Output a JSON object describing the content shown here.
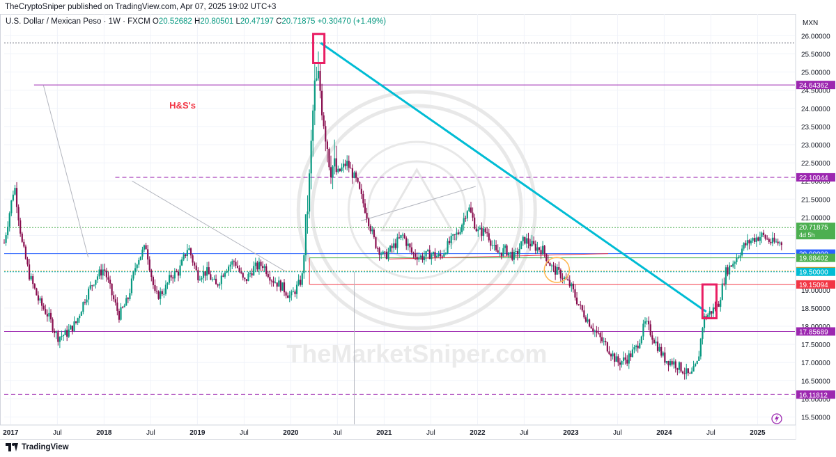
{
  "publisher_line": "TheCryptoSniper published on TradingView.com, Apr 07, 2025 19:02 UTC+3",
  "symbol": {
    "name": "U.S. Dollar / Mexican Peso · 1W · FXCM",
    "o_label": "O",
    "o_value": "20.52682",
    "h_label": "H",
    "h_value": "20.80501",
    "l_label": "L",
    "l_value": "20.47197",
    "c_label": "C",
    "c_value": "20.71875",
    "change": "+0.30470 (+1.49%)"
  },
  "footer": {
    "brand": "TradingView"
  },
  "chart_data": {
    "type": "candlestick",
    "currency_label": "MXN",
    "ylim": [
      15.3,
      26.6
    ],
    "y_ticks": [
      "15.50000",
      "16.00000",
      "16.50000",
      "17.00000",
      "17.50000",
      "18.00000",
      "18.50000",
      "19.00000",
      "19.50000",
      "20.00000",
      "20.50000",
      "21.00000",
      "21.50000",
      "22.00000",
      "22.50000",
      "23.00000",
      "23.50000",
      "24.00000",
      "24.50000",
      "25.00000",
      "25.50000",
      "26.00000"
    ],
    "x_ticks": [
      {
        "label": "2017",
        "t": 2017.0
      },
      {
        "label": "Jul",
        "t": 2017.5
      },
      {
        "label": "2018",
        "t": 2018.0
      },
      {
        "label": "Jul",
        "t": 2018.5
      },
      {
        "label": "2019",
        "t": 2019.0
      },
      {
        "label": "Jul",
        "t": 2019.5
      },
      {
        "label": "2020",
        "t": 2020.0
      },
      {
        "label": "Jul",
        "t": 2020.5
      },
      {
        "label": "2021",
        "t": 2021.0
      },
      {
        "label": "Jul",
        "t": 2021.5
      },
      {
        "label": "2022",
        "t": 2022.0
      },
      {
        "label": "Jul",
        "t": 2022.5
      },
      {
        "label": "2023",
        "t": 2023.0
      },
      {
        "label": "Jul",
        "t": 2023.5
      },
      {
        "label": "2024",
        "t": 2024.0
      },
      {
        "label": "Jul",
        "t": 2024.5
      },
      {
        "label": "2025",
        "t": 2025.0
      }
    ],
    "x_range": [
      2016.93,
      2025.4
    ],
    "series_price_path": [
      [
        2016.93,
        20.3
      ],
      [
        2017.04,
        21.9
      ],
      [
        2017.12,
        20.3
      ],
      [
        2017.2,
        19.4
      ],
      [
        2017.3,
        18.7
      ],
      [
        2017.4,
        18.3
      ],
      [
        2017.5,
        17.7
      ],
      [
        2017.6,
        17.8
      ],
      [
        2017.7,
        18.1
      ],
      [
        2017.8,
        18.8
      ],
      [
        2017.9,
        19.3
      ],
      [
        2018.0,
        19.6
      ],
      [
        2018.08,
        18.9
      ],
      [
        2018.16,
        18.3
      ],
      [
        2018.25,
        18.7
      ],
      [
        2018.35,
        19.8
      ],
      [
        2018.45,
        20.2
      ],
      [
        2018.55,
        18.8
      ],
      [
        2018.65,
        19.0
      ],
      [
        2018.72,
        19.4
      ],
      [
        2018.8,
        19.5
      ],
      [
        2018.9,
        20.2
      ],
      [
        2019.0,
        19.4
      ],
      [
        2019.1,
        19.5
      ],
      [
        2019.2,
        19.1
      ],
      [
        2019.3,
        19.6
      ],
      [
        2019.4,
        19.8
      ],
      [
        2019.5,
        19.2
      ],
      [
        2019.6,
        19.6
      ],
      [
        2019.7,
        19.7
      ],
      [
        2019.8,
        19.3
      ],
      [
        2019.9,
        19.1
      ],
      [
        2020.0,
        18.8
      ],
      [
        2020.12,
        19.3
      ],
      [
        2020.2,
        22.0
      ],
      [
        2020.25,
        24.5
      ],
      [
        2020.3,
        24.8
      ],
      [
        2020.35,
        23.8
      ],
      [
        2020.42,
        22.5
      ],
      [
        2020.5,
        22.2
      ],
      [
        2020.6,
        22.5
      ],
      [
        2020.7,
        22.0
      ],
      [
        2020.8,
        21.2
      ],
      [
        2020.9,
        20.3
      ],
      [
        2021.0,
        19.9
      ],
      [
        2021.1,
        20.2
      ],
      [
        2021.2,
        20.5
      ],
      [
        2021.3,
        20.0
      ],
      [
        2021.4,
        19.9
      ],
      [
        2021.5,
        20.0
      ],
      [
        2021.6,
        19.9
      ],
      [
        2021.7,
        20.3
      ],
      [
        2021.8,
        20.6
      ],
      [
        2021.9,
        21.3
      ],
      [
        2022.0,
        20.6
      ],
      [
        2022.1,
        20.6
      ],
      [
        2022.2,
        20.0
      ],
      [
        2022.3,
        20.1
      ],
      [
        2022.4,
        19.9
      ],
      [
        2022.5,
        20.4
      ],
      [
        2022.6,
        20.2
      ],
      [
        2022.7,
        20.1
      ],
      [
        2022.8,
        19.6
      ],
      [
        2022.9,
        19.4
      ],
      [
        2023.0,
        19.1
      ],
      [
        2023.1,
        18.5
      ],
      [
        2023.2,
        18.1
      ],
      [
        2023.3,
        17.7
      ],
      [
        2023.4,
        17.4
      ],
      [
        2023.5,
        17.0
      ],
      [
        2023.6,
        17.1
      ],
      [
        2023.7,
        17.4
      ],
      [
        2023.8,
        18.1
      ],
      [
        2023.9,
        17.6
      ],
      [
        2024.0,
        17.1
      ],
      [
        2024.1,
        17.0
      ],
      [
        2024.2,
        16.8
      ],
      [
        2024.28,
        16.6
      ],
      [
        2024.36,
        17.0
      ],
      [
        2024.42,
        18.2
      ],
      [
        2024.5,
        18.4
      ],
      [
        2024.58,
        18.6
      ],
      [
        2024.66,
        19.5
      ],
      [
        2024.75,
        19.8
      ],
      [
        2024.85,
        20.2
      ],
      [
        2024.95,
        20.4
      ],
      [
        2025.05,
        20.5
      ],
      [
        2025.15,
        20.3
      ],
      [
        2025.26,
        20.3
      ]
    ],
    "price_labels": [
      {
        "value": 24.64362,
        "text": "24.64362",
        "color": "#9c27b0"
      },
      {
        "value": 22.10044,
        "text": "22.10044",
        "color": "#9c27b0"
      },
      {
        "value": 20.71875,
        "text": "20.71875",
        "subtext": "4d 5h",
        "color": "#4caf50"
      },
      {
        "value": 20.0,
        "text": "20.00000",
        "color": "#2962ff"
      },
      {
        "value": 19.88402,
        "text": "19.88402",
        "color": "#4caf50"
      },
      {
        "value": 19.51709,
        "text": "19.51709",
        "color": "#ff9800"
      },
      {
        "value": 19.5,
        "text": "19.50000",
        "color": "#00bcd4"
      },
      {
        "value": 19.15094,
        "text": "19.15094",
        "color": "#f23645"
      },
      {
        "value": 17.85689,
        "text": "17.85689",
        "color": "#9c27b0"
      },
      {
        "value": 16.11812,
        "text": "16.11812",
        "color": "#9c27b0"
      }
    ],
    "annotation_text": "H&S's",
    "watermark_text": "TheMarketSniper.com",
    "hlines": [
      {
        "value": 25.8,
        "color": "#9598a1",
        "style": "dotted",
        "from": 2016.93
      },
      {
        "value": 24.64362,
        "color": "#9c27b0",
        "style": "solid",
        "from": 2017.25
      },
      {
        "value": 22.10044,
        "color": "#9c27b0",
        "style": "dashed",
        "from": 2018.12
      },
      {
        "value": 20.71875,
        "color": "#4caf50",
        "style": "dotted",
        "from": 2016.93
      },
      {
        "value": 20.0,
        "color": "#2962ff",
        "style": "solid",
        "from": 2016.93
      },
      {
        "value": 19.88402,
        "color": "#4caf50",
        "style": "solid",
        "from": 2020.2
      },
      {
        "value": 19.51709,
        "color": "#ff9800",
        "style": "dotted",
        "from": 2016.93
      },
      {
        "value": 19.5,
        "color": "#00bcd4",
        "style": "dotted",
        "from": 2016.93
      },
      {
        "value": 19.15094,
        "color": "#f23645",
        "style": "solid",
        "from": 2020.2
      },
      {
        "value": 17.85689,
        "color": "#9c27b0",
        "style": "solid",
        "from": 2016.93
      },
      {
        "value": 16.11812,
        "color": "#9c27b0",
        "style": "dashed",
        "from": 2016.93
      }
    ],
    "trendlines": [
      {
        "x1": 2020.32,
        "y1": 25.8,
        "x2": 2024.45,
        "y2": 18.4,
        "color": "#00bcd4",
        "width": 3
      },
      {
        "x1": 2017.35,
        "y1": 24.64,
        "x2": 2017.83,
        "y2": 19.9,
        "color": "#b2b5be",
        "width": 1
      },
      {
        "x1": 2018.3,
        "y1": 22.0,
        "x2": 2019.95,
        "y2": 19.5,
        "color": "#b2b5be",
        "width": 1
      },
      {
        "x1": 2020.75,
        "y1": 20.9,
        "x2": 2021.98,
        "y2": 21.85,
        "color": "#b2b5be",
        "width": 1
      },
      {
        "x1": 2021.05,
        "y1": 19.85,
        "x2": 2023.4,
        "y2": 20.0,
        "color": "#f23645",
        "width": 1
      }
    ],
    "highlight_boxes": [
      {
        "t0": 2020.24,
        "t1": 2020.36,
        "y0": 25.25,
        "y1": 26.05,
        "color": "#e91e63"
      },
      {
        "t0": 2024.41,
        "t1": 2024.56,
        "y0": 18.22,
        "y1": 19.15,
        "color": "#e91e63"
      }
    ],
    "circle_marker": {
      "t": 2022.85,
      "value": 19.55,
      "color": "#ffb74d"
    },
    "current": {
      "t": 2025.26,
      "value": 20.71875
    }
  }
}
